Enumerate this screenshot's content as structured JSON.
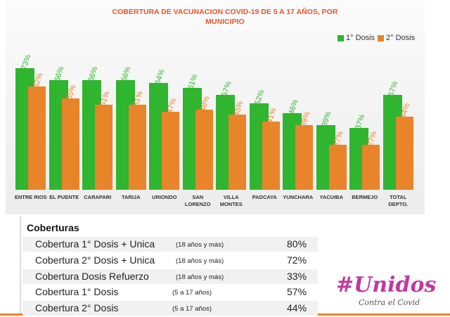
{
  "chart_data": {
    "type": "bar",
    "title": "COBERTURA DE VACUNACION COVID-19 DE 5 A 17 AÑOS, POR MUNICIPIO",
    "categories": [
      "ENTRE RIOS",
      "EL PUENTE",
      "CARAPARI",
      "TARIJA",
      "URIONDO",
      "SAN LORENZO",
      "VILLA MONTES",
      "PADCAYA",
      "YUNCHARA",
      "YACUIBA",
      "BERMEJO",
      "TOTAL DEPTO."
    ],
    "series": [
      {
        "name": "1° Dosis",
        "color": "#2fb52f",
        "values": [
          73,
          66,
          66,
          66,
          64,
          61,
          57,
          52,
          46,
          39,
          37,
          57
        ],
        "value_labels": [
          "73%",
          "66%",
          "66%",
          "66%",
          "64%",
          "61%",
          "57%",
          "52%",
          "46%",
          "39%",
          "37%",
          "57%"
        ]
      },
      {
        "name": "2° Dosis",
        "color": "#e8842a",
        "values": [
          62,
          55,
          51,
          51,
          47,
          48,
          45,
          41,
          39,
          27,
          27,
          44
        ],
        "value_labels": [
          "62%",
          "55%",
          "51%",
          "51%",
          "47%",
          "48%",
          "45%",
          "41%",
          "39%",
          "27%",
          "27%",
          "44%"
        ]
      }
    ],
    "ylim": [
      0,
      100
    ],
    "legend": "top-right"
  },
  "table": {
    "title": "Coberturas",
    "rows": [
      [
        "Cobertura 1° Dosis + Unica",
        "(18 años y más)",
        "80%"
      ],
      [
        "Cobertura 2° Dosis + Unica",
        "(18 años y más)",
        "72%"
      ],
      [
        "Cobertura Dosis Refuerzo",
        "(18 años y más)",
        "33%"
      ],
      [
        "Cobertura 1° Dosis",
        "(5 a 17 años)",
        "57%"
      ],
      [
        "Cobertura 2° Dosis",
        "(5 a 17 años)",
        "44%"
      ]
    ]
  },
  "logo": {
    "title": "#Unidos",
    "subtitle": "Contra el Covid"
  }
}
